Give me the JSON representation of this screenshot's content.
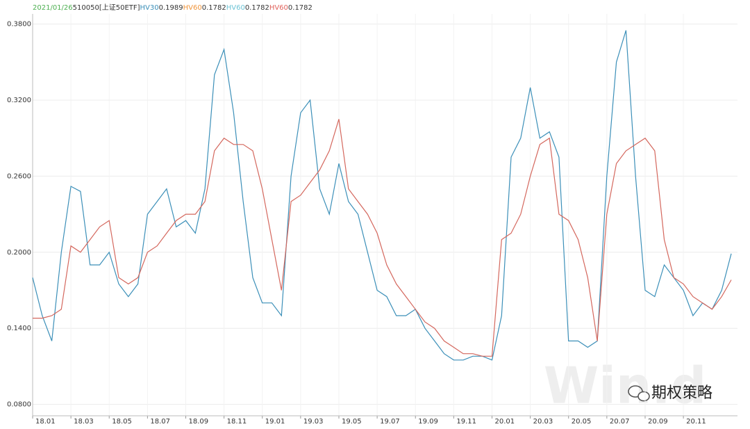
{
  "chart_data": {
    "type": "line",
    "header": [
      "2021/01/26",
      "510050[上证50ETF]"
    ],
    "header_color": "#333333",
    "date_color": "#4caf50",
    "legend": [
      {
        "name": "HV30",
        "color": "#3b8fb8",
        "latest": 0.1989
      },
      {
        "name": "HV60",
        "color": "#f0943a",
        "latest": 0.1782
      },
      {
        "name": "HV60",
        "color": "#6cc3d5",
        "latest": 0.1782
      },
      {
        "name": "HV60",
        "color": "#e0605a",
        "latest": 0.1782
      }
    ],
    "categories": [
      "18.01",
      null,
      null,
      null,
      "18.03",
      null,
      null,
      null,
      "18.05",
      null,
      null,
      null,
      "18.07",
      null,
      null,
      null,
      "18.09",
      null,
      null,
      null,
      "18.11",
      null,
      null,
      null,
      "19.01",
      null,
      null,
      null,
      "19.03",
      null,
      null,
      null,
      "19.05",
      null,
      null,
      null,
      "19.07",
      null,
      null,
      null,
      "19.09",
      null,
      null,
      null,
      "19.11",
      null,
      null,
      null,
      "20.01",
      null,
      null,
      null,
      "20.03",
      null,
      null,
      null,
      "20.05",
      null,
      null,
      null,
      "20.07",
      null,
      null,
      null,
      "20.09",
      null,
      null,
      null,
      "20.11",
      null,
      null,
      null,
      null,
      null
    ],
    "series": [
      {
        "name": "HV30",
        "color": "#3b8fb8",
        "values": [
          0.18,
          0.15,
          0.13,
          0.2,
          0.252,
          0.248,
          0.19,
          0.19,
          0.2,
          0.175,
          0.165,
          0.175,
          0.23,
          0.24,
          0.25,
          0.22,
          0.225,
          0.215,
          0.25,
          0.34,
          0.36,
          0.31,
          0.24,
          0.18,
          0.16,
          0.16,
          0.15,
          0.26,
          0.31,
          0.32,
          0.25,
          0.23,
          0.27,
          0.24,
          0.23,
          0.2,
          0.17,
          0.165,
          0.15,
          0.15,
          0.155,
          0.14,
          0.13,
          0.12,
          0.115,
          0.115,
          0.118,
          0.118,
          0.115,
          0.15,
          0.275,
          0.29,
          0.33,
          0.29,
          0.295,
          0.275,
          0.13,
          0.13,
          0.125,
          0.13,
          0.26,
          0.35,
          0.375,
          0.26,
          0.17,
          0.165,
          0.19,
          0.18,
          0.17,
          0.15,
          0.16,
          0.155,
          0.17,
          0.1989
        ]
      },
      {
        "name": "HV60",
        "color": "#d4675d",
        "values": [
          0.148,
          0.148,
          0.15,
          0.155,
          0.205,
          0.2,
          0.21,
          0.22,
          0.225,
          0.18,
          0.175,
          0.18,
          0.2,
          0.205,
          0.215,
          0.225,
          0.23,
          0.23,
          0.24,
          0.28,
          0.29,
          0.285,
          0.285,
          0.28,
          0.25,
          0.21,
          0.17,
          0.24,
          0.245,
          0.255,
          0.265,
          0.28,
          0.305,
          0.25,
          0.24,
          0.23,
          0.215,
          0.19,
          0.175,
          0.165,
          0.155,
          0.145,
          0.14,
          0.13,
          0.125,
          0.12,
          0.12,
          0.118,
          0.118,
          0.21,
          0.215,
          0.23,
          0.26,
          0.285,
          0.29,
          0.23,
          0.225,
          0.21,
          0.18,
          0.13,
          0.23,
          0.27,
          0.28,
          0.285,
          0.29,
          0.28,
          0.21,
          0.18,
          0.175,
          0.165,
          0.16,
          0.155,
          0.165,
          0.1782
        ]
      }
    ],
    "ylim": [
      0.071,
      0.388
    ],
    "yticks": [
      {
        "value": 0.08,
        "label": "0.0800"
      },
      {
        "value": 0.14,
        "label": "0.1400"
      },
      {
        "value": 0.2,
        "label": "0.2000"
      },
      {
        "value": 0.26,
        "label": "0.2600"
      },
      {
        "value": 0.32,
        "label": "0.3200"
      },
      {
        "value": 0.38,
        "label": "0.3800"
      }
    ],
    "grid": true,
    "watermark": "Win.d",
    "brand": "期权策略"
  }
}
